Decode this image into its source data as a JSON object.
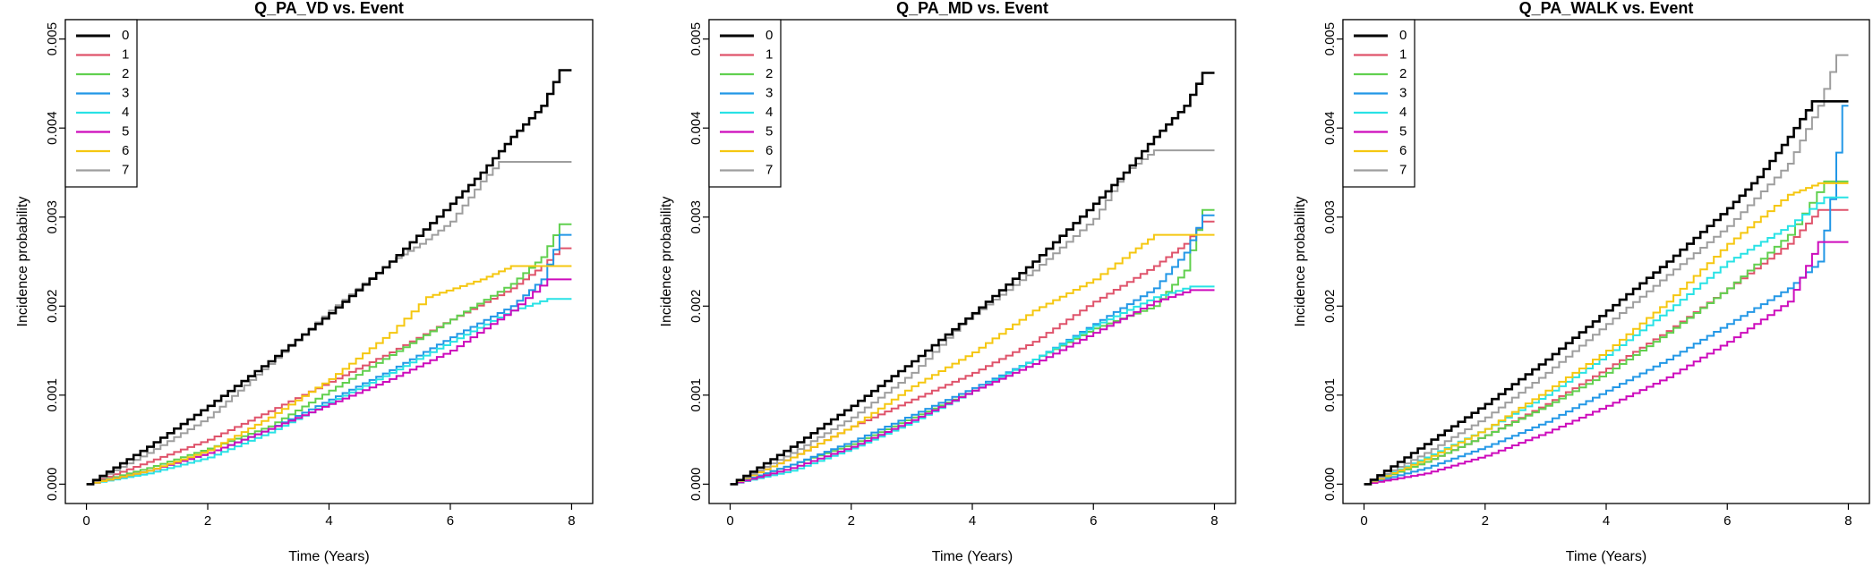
{
  "figure": {
    "xlabel": "Time (Years)",
    "ylabel": "Incidence probability"
  },
  "legend": {
    "placement": "top-left",
    "entries": [
      "0",
      "1",
      "2",
      "3",
      "4",
      "5",
      "6",
      "7"
    ],
    "colors": [
      "#000000",
      "#df536b",
      "#61d04f",
      "#2297e6",
      "#28e2e5",
      "#cd0bbc",
      "#f5c710",
      "#9e9e9e"
    ]
  },
  "chart_data": [
    {
      "type": "line",
      "title": "Q_PA_VD vs. Event",
      "xlabel": "Time (Years)",
      "ylabel": "Incidence probability",
      "xlim": [
        0,
        8
      ],
      "ylim": [
        0,
        0.005
      ],
      "xticks": [
        "0",
        "2",
        "4",
        "6",
        "8"
      ],
      "yticks": [
        "0.000",
        "0.001",
        "0.002",
        "0.003",
        "0.004",
        "0.005"
      ],
      "grid": false,
      "legend": "top-left",
      "series": [
        {
          "name": "0",
          "x": [
            0,
            1,
            2,
            3,
            4,
            5,
            6,
            6.5,
            7,
            7.5,
            7.8,
            8
          ],
          "y": [
            0,
            0.00042,
            0.00088,
            0.00138,
            0.00192,
            0.0025,
            0.00315,
            0.0035,
            0.0039,
            0.00425,
            0.00465,
            0.00465
          ]
        },
        {
          "name": "1",
          "x": [
            0,
            1,
            2,
            3,
            4,
            5,
            6,
            7,
            7.5,
            7.8,
            8
          ],
          "y": [
            0,
            0.00025,
            0.0005,
            0.00082,
            0.00115,
            0.00148,
            0.00185,
            0.0022,
            0.00245,
            0.00265,
            0.00265
          ]
        },
        {
          "name": "2",
          "x": [
            0,
            1,
            2,
            3,
            4,
            5,
            6,
            7,
            7.5,
            7.8,
            8
          ],
          "y": [
            0,
            0.00018,
            0.0004,
            0.00065,
            0.00105,
            0.00145,
            0.00185,
            0.00225,
            0.00255,
            0.00292,
            0.00292
          ]
        },
        {
          "name": "3",
          "x": [
            0,
            1,
            2,
            3,
            4,
            5,
            6,
            7,
            7.5,
            7.8,
            8
          ],
          "y": [
            0,
            0.00015,
            0.00035,
            0.00062,
            0.00095,
            0.00128,
            0.00165,
            0.002,
            0.0023,
            0.0028,
            0.0028
          ]
        },
        {
          "name": "4",
          "x": [
            0,
            1,
            2,
            3,
            4,
            5,
            6,
            7,
            7.6,
            8
          ],
          "y": [
            0,
            0.00012,
            0.0003,
            0.00058,
            0.00092,
            0.00125,
            0.0016,
            0.00195,
            0.00208,
            0.00208
          ]
        },
        {
          "name": "5",
          "x": [
            0,
            1,
            2,
            3,
            4,
            5,
            6,
            7,
            7.6,
            8
          ],
          "y": [
            0,
            0.00015,
            0.00035,
            0.00062,
            0.0009,
            0.00118,
            0.0015,
            0.00195,
            0.0023,
            0.0023
          ]
        },
        {
          "name": "6",
          "x": [
            0,
            1,
            2,
            3,
            4,
            5,
            5.6,
            6.5,
            7,
            7.5,
            8
          ],
          "y": [
            0,
            0.00015,
            0.00038,
            0.00075,
            0.00118,
            0.0017,
            0.0021,
            0.0023,
            0.00245,
            0.00245,
            0.00245
          ]
        },
        {
          "name": "7",
          "x": [
            0,
            1,
            2,
            2.5,
            3,
            4,
            5,
            5.5,
            6,
            6.5,
            6.8,
            8
          ],
          "y": [
            0,
            0.00035,
            0.00075,
            0.00105,
            0.00135,
            0.00195,
            0.0025,
            0.0027,
            0.00295,
            0.0034,
            0.00362,
            0.00362
          ]
        }
      ]
    },
    {
      "type": "line",
      "title": "Q_PA_MD vs. Event",
      "xlabel": "Time (Years)",
      "ylabel": "Incidence probability",
      "xlim": [
        0,
        8
      ],
      "ylim": [
        0,
        0.005
      ],
      "xticks": [
        "0",
        "2",
        "4",
        "6",
        "8"
      ],
      "yticks": [
        "0.000",
        "0.001",
        "0.002",
        "0.003",
        "0.004",
        "0.005"
      ],
      "grid": false,
      "legend": "top-left",
      "series": [
        {
          "name": "0",
          "x": [
            0,
            1,
            2,
            3,
            4,
            5,
            6,
            6.5,
            7,
            7.5,
            7.8,
            8
          ],
          "y": [
            0,
            0.00042,
            0.00088,
            0.00138,
            0.00192,
            0.0025,
            0.00315,
            0.0035,
            0.0039,
            0.00425,
            0.00462,
            0.00462
          ]
        },
        {
          "name": "1",
          "x": [
            0,
            1,
            2,
            3,
            4,
            5,
            6,
            7,
            7.5,
            7.8,
            8
          ],
          "y": [
            0,
            0.0003,
            0.00065,
            0.00095,
            0.00125,
            0.0016,
            0.00205,
            0.00245,
            0.0027,
            0.00295,
            0.00295
          ]
        },
        {
          "name": "2",
          "x": [
            0,
            1,
            2,
            3,
            4,
            5,
            6,
            7,
            7.5,
            7.8,
            8
          ],
          "y": [
            0,
            0.00022,
            0.00045,
            0.00075,
            0.00105,
            0.0014,
            0.00175,
            0.002,
            0.0024,
            0.00308,
            0.00308
          ]
        },
        {
          "name": "3",
          "x": [
            0,
            1,
            2,
            3,
            4,
            5,
            6,
            7,
            7.5,
            7.8,
            8
          ],
          "y": [
            0,
            0.00022,
            0.00048,
            0.00078,
            0.00108,
            0.0014,
            0.0018,
            0.0022,
            0.0026,
            0.00302,
            0.00302
          ]
        },
        {
          "name": "4",
          "x": [
            0,
            1,
            2,
            3,
            4,
            5,
            6,
            7,
            7.6,
            8
          ],
          "y": [
            0,
            0.00015,
            0.0004,
            0.0007,
            0.00105,
            0.0014,
            0.00178,
            0.0021,
            0.00222,
            0.00222
          ]
        },
        {
          "name": "5",
          "x": [
            0,
            1,
            2,
            3,
            4,
            5,
            6,
            7,
            7.6,
            8
          ],
          "y": [
            0,
            0.00018,
            0.00042,
            0.00072,
            0.00105,
            0.00135,
            0.0017,
            0.00205,
            0.00218,
            0.00218
          ]
        },
        {
          "name": "6",
          "x": [
            0,
            1,
            2,
            3,
            4,
            5,
            6,
            6.6,
            7,
            7.5,
            8
          ],
          "y": [
            0,
            0.0003,
            0.00065,
            0.0011,
            0.00148,
            0.00195,
            0.0023,
            0.0026,
            0.0028,
            0.0028,
            0.0028
          ]
        },
        {
          "name": "7",
          "x": [
            0,
            1,
            2,
            3,
            3.8,
            5,
            6,
            6.5,
            7,
            8
          ],
          "y": [
            0,
            0.00035,
            0.00075,
            0.00125,
            0.0018,
            0.0024,
            0.00298,
            0.0035,
            0.00375,
            0.00375
          ]
        }
      ]
    },
    {
      "type": "line",
      "title": "Q_PA_WALK vs. Event",
      "xlabel": "Time (Years)",
      "ylabel": "Incidence probability",
      "xlim": [
        0,
        8
      ],
      "ylim": [
        0,
        0.005
      ],
      "xticks": [
        "0",
        "2",
        "4",
        "6",
        "8"
      ],
      "yticks": [
        "0.000",
        "0.001",
        "0.002",
        "0.003",
        "0.004",
        "0.005"
      ],
      "grid": false,
      "legend": "top-left",
      "series": [
        {
          "name": "0",
          "x": [
            0,
            1,
            2,
            3,
            4,
            5,
            6,
            6.5,
            7,
            7.4,
            8
          ],
          "y": [
            0,
            0.00045,
            0.0009,
            0.0014,
            0.00195,
            0.0025,
            0.0031,
            0.00345,
            0.0039,
            0.0043,
            0.0043
          ]
        },
        {
          "name": "1",
          "x": [
            0,
            1,
            2,
            3,
            4,
            5,
            6,
            7,
            7.5,
            8
          ],
          "y": [
            0,
            0.00025,
            0.00055,
            0.0009,
            0.0013,
            0.00172,
            0.0022,
            0.0027,
            0.00308,
            0.00308
          ]
        },
        {
          "name": "2",
          "x": [
            0,
            1,
            2,
            3,
            4,
            5,
            6,
            7,
            7.6,
            8
          ],
          "y": [
            0,
            0.00025,
            0.00055,
            0.00088,
            0.00125,
            0.0017,
            0.0022,
            0.0028,
            0.0034,
            0.0034
          ]
        },
        {
          "name": "3",
          "x": [
            0,
            1,
            2,
            3,
            4,
            5,
            6,
            7,
            7.5,
            7.7,
            7.9,
            8
          ],
          "y": [
            0,
            0.00018,
            0.00042,
            0.0007,
            0.00105,
            0.0014,
            0.0018,
            0.0022,
            0.0025,
            0.0032,
            0.00425,
            0.00425
          ]
        },
        {
          "name": "4",
          "x": [
            0,
            1,
            2,
            3,
            4,
            5,
            6,
            7,
            7.6,
            8
          ],
          "y": [
            0,
            0.0003,
            0.00062,
            0.001,
            0.00145,
            0.00195,
            0.0025,
            0.0029,
            0.00322,
            0.00322
          ]
        },
        {
          "name": "5",
          "x": [
            0,
            1,
            2,
            3,
            4,
            5,
            6,
            7,
            7.5,
            8
          ],
          "y": [
            0,
            0.00012,
            0.00032,
            0.00058,
            0.00088,
            0.0012,
            0.0016,
            0.00205,
            0.00272,
            0.00272
          ]
        },
        {
          "name": "6",
          "x": [
            0,
            1,
            2,
            3,
            4,
            5,
            6,
            7,
            7.5,
            8
          ],
          "y": [
            0,
            0.00028,
            0.00062,
            0.00105,
            0.0015,
            0.00205,
            0.0027,
            0.00325,
            0.00338,
            0.00338
          ]
        },
        {
          "name": "7",
          "x": [
            0,
            1,
            2,
            3,
            4,
            5,
            6,
            7,
            7.5,
            7.8,
            8
          ],
          "y": [
            0,
            0.00035,
            0.00075,
            0.00125,
            0.0018,
            0.00235,
            0.0029,
            0.0036,
            0.00425,
            0.00482,
            0.00482
          ]
        }
      ]
    }
  ]
}
